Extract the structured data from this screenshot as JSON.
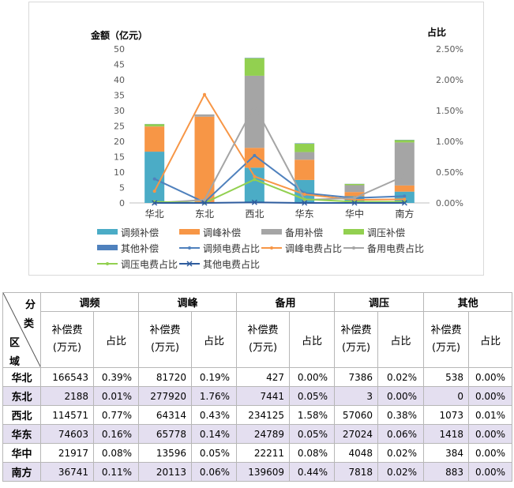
{
  "chart_data": {
    "type": "bar",
    "stacked": true,
    "categories": [
      "华北",
      "东北",
      "西北",
      "华东",
      "华中",
      "南方"
    ],
    "ylabel": "金额（亿元）",
    "y2label": "占比",
    "ylim": [
      0,
      50
    ],
    "y_ticks": [
      "0",
      "5",
      "10",
      "15",
      "20",
      "25",
      "30",
      "35",
      "40",
      "45",
      "50"
    ],
    "y2lim": [
      0,
      2.5
    ],
    "y2_ticks": [
      "0.00%",
      "0.50%",
      "1.00%",
      "1.50%",
      "2.00%",
      "2.50%"
    ],
    "legend_position": "bottom",
    "series": [
      {
        "name": "调频补偿",
        "kind": "bar",
        "color": "#4bacc6",
        "values": [
          16.65,
          0.22,
          11.46,
          7.46,
          2.19,
          3.67
        ]
      },
      {
        "name": "调峰补偿",
        "kind": "bar",
        "color": "#f79646",
        "values": [
          8.17,
          27.79,
          6.43,
          6.58,
          1.36,
          2.01
        ]
      },
      {
        "name": "备用补偿",
        "kind": "bar",
        "color": "#a5a5a5",
        "values": [
          0.04,
          0.74,
          23.41,
          2.48,
          2.22,
          13.96
        ]
      },
      {
        "name": "调压补偿",
        "kind": "bar",
        "color": "#92d050",
        "values": [
          0.74,
          0.0,
          5.71,
          2.7,
          0.4,
          0.78
        ]
      },
      {
        "name": "其他补偿",
        "kind": "bar",
        "color": "#4f81bd",
        "values": [
          0.05,
          0.0,
          0.11,
          0.14,
          0.04,
          0.09
        ]
      },
      {
        "name": "调频电费占比",
        "kind": "line",
        "color": "#4f81bd",
        "values": [
          0.39,
          0.01,
          0.77,
          0.16,
          0.08,
          0.11
        ]
      },
      {
        "name": "调峰电费占比",
        "kind": "line",
        "color": "#f79646",
        "values": [
          0.19,
          1.76,
          0.43,
          0.14,
          0.05,
          0.06
        ]
      },
      {
        "name": "备用电费占比",
        "kind": "line",
        "color": "#a5a5a5",
        "values": [
          0.0,
          0.05,
          1.58,
          0.05,
          0.08,
          0.44
        ]
      },
      {
        "name": "调压电费占比",
        "kind": "line",
        "color": "#92d050",
        "values": [
          0.02,
          0.0,
          0.38,
          0.06,
          0.02,
          0.02
        ]
      },
      {
        "name": "其他电费占比",
        "kind": "line",
        "color": "#2e5c9e",
        "values": [
          0.0,
          0.0,
          0.01,
          0.0,
          0.0,
          0.0
        ]
      }
    ]
  },
  "table": {
    "corner": {
      "top": "分",
      "mid": "类",
      "low": "区",
      "bot": "域"
    },
    "groups": [
      "调频",
      "调峰",
      "备用",
      "调压",
      "其他"
    ],
    "sub_fee": "补偿费\n(万元)",
    "sub_pct": "占比",
    "rows": [
      {
        "region": "华北",
        "cells": [
          "166543",
          "0.39%",
          "81720",
          "0.19%",
          "427",
          "0.00%",
          "7386",
          "0.02%",
          "538",
          "0.00%"
        ]
      },
      {
        "region": "东北",
        "cells": [
          "2188",
          "0.01%",
          "277920",
          "1.76%",
          "7441",
          "0.05%",
          "3",
          "0.00%",
          "0",
          "0.00%"
        ]
      },
      {
        "region": "西北",
        "cells": [
          "114571",
          "0.77%",
          "64314",
          "0.43%",
          "234125",
          "1.58%",
          "57060",
          "0.38%",
          "1073",
          "0.01%"
        ]
      },
      {
        "region": "华东",
        "cells": [
          "74603",
          "0.16%",
          "65778",
          "0.14%",
          "24789",
          "0.05%",
          "27024",
          "0.06%",
          "1418",
          "0.00%"
        ]
      },
      {
        "region": "华中",
        "cells": [
          "21917",
          "0.08%",
          "13596",
          "0.05%",
          "22211",
          "0.08%",
          "4048",
          "0.02%",
          "384",
          "0.00%"
        ]
      },
      {
        "region": "南方",
        "cells": [
          "36741",
          "0.11%",
          "20113",
          "0.06%",
          "139609",
          "0.44%",
          "7818",
          "0.02%",
          "883",
          "0.00%"
        ]
      }
    ]
  }
}
